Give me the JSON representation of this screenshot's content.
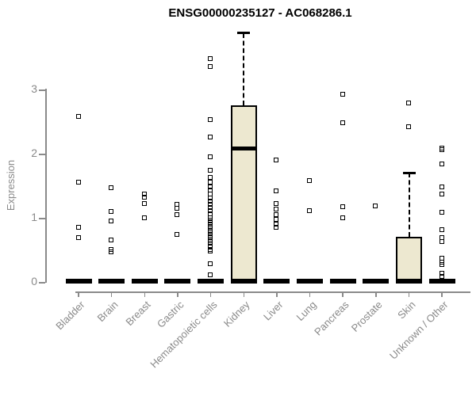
{
  "chart_data": {
    "type": "boxplot",
    "title": "ENSG00000235127 - AC068286.1",
    "ylabel": "Expression",
    "xlabel": "",
    "yticks": [
      0,
      1,
      2,
      3
    ],
    "ylim": [
      0,
      3.95
    ],
    "grid": false,
    "legend": "none",
    "categories": [
      "Bladder",
      "Brain",
      "Breast",
      "Gastric",
      "Hematopoietic cells",
      "Kidney",
      "Liver",
      "Lung",
      "Pancreas",
      "Prostate",
      "Skin",
      "Unknown / Other"
    ],
    "series": [
      {
        "name": "Bladder",
        "box": {
          "q1": 0,
          "median": 0,
          "q3": 0,
          "whisker_low": 0,
          "whisker_high": 0
        },
        "points": [
          2.58,
          1.55,
          0.85,
          0.68
        ]
      },
      {
        "name": "Brain",
        "box": {
          "q1": 0,
          "median": 0,
          "q3": 0,
          "whisker_low": 0,
          "whisker_high": 0
        },
        "points": [
          1.46,
          1.09,
          0.95,
          0.65,
          0.5,
          0.46
        ]
      },
      {
        "name": "Breast",
        "box": {
          "q1": 0,
          "median": 0,
          "q3": 0,
          "whisker_low": 0,
          "whisker_high": 0
        },
        "points": [
          1.36,
          1.32,
          1.21,
          1.0
        ]
      },
      {
        "name": "Gastric",
        "box": {
          "q1": 0,
          "median": 0,
          "q3": 0,
          "whisker_low": 0,
          "whisker_high": 0
        },
        "points": [
          1.2,
          1.14,
          1.04,
          0.73
        ]
      },
      {
        "name": "Hematopoietic cells",
        "box": {
          "q1": 0,
          "median": 0,
          "q3": 0,
          "whisker_low": 0,
          "whisker_high": 0
        },
        "points": [
          3.47,
          3.35,
          2.52,
          2.25,
          1.95,
          1.74,
          1.62,
          1.55,
          1.48,
          1.42,
          1.36,
          1.3,
          1.25,
          1.2,
          1.15,
          1.1,
          1.05,
          1.0,
          0.96,
          0.92,
          0.88,
          0.84,
          0.8,
          0.76,
          0.72,
          0.68,
          0.64,
          0.6,
          0.55,
          0.5,
          0.47,
          0.28,
          0.1
        ]
      },
      {
        "name": "Kidney",
        "box": {
          "q1": 0,
          "median": 2.08,
          "q3": 2.75,
          "whisker_low": 0,
          "whisker_high": 3.88
        },
        "points": []
      },
      {
        "name": "Liver",
        "box": {
          "q1": 0,
          "median": 0,
          "q3": 0,
          "whisker_low": 0,
          "whisker_high": 0
        },
        "points": [
          1.9,
          1.41,
          1.22,
          1.13,
          1.04,
          0.97,
          0.9,
          0.85
        ]
      },
      {
        "name": "Lung",
        "box": {
          "q1": 0,
          "median": 0,
          "q3": 0,
          "whisker_low": 0,
          "whisker_high": 0
        },
        "points": [
          1.57,
          1.11
        ]
      },
      {
        "name": "Pancreas",
        "box": {
          "q1": 0,
          "median": 0,
          "q3": 0,
          "whisker_low": 0,
          "whisker_high": 0
        },
        "points": [
          2.92,
          2.47,
          1.17,
          0.99
        ]
      },
      {
        "name": "Prostate",
        "box": {
          "q1": 0,
          "median": 0,
          "q3": 0,
          "whisker_low": 0,
          "whisker_high": 0
        },
        "points": [
          1.18
        ]
      },
      {
        "name": "Skin",
        "box": {
          "q1": 0,
          "median": 0,
          "q3": 0.7,
          "whisker_low": 0,
          "whisker_high": 1.7
        },
        "points": [
          2.78,
          2.41
        ]
      },
      {
        "name": "Unknown / Other",
        "box": {
          "q1": 0,
          "median": 0,
          "q3": 0,
          "whisker_low": 0,
          "whisker_high": 0
        },
        "points": [
          2.08,
          2.05,
          1.83,
          1.47,
          1.37,
          1.08,
          0.81,
          0.69,
          0.62,
          0.36,
          0.3,
          0.26,
          0.13,
          0.08
        ]
      }
    ],
    "colors": {
      "box_fill": "#EDE8D0",
      "box_border": "#000000",
      "marker": "#000000",
      "axis": "#8A8A8A",
      "tick_label": "#8A8A8A",
      "title": "#000000"
    }
  }
}
